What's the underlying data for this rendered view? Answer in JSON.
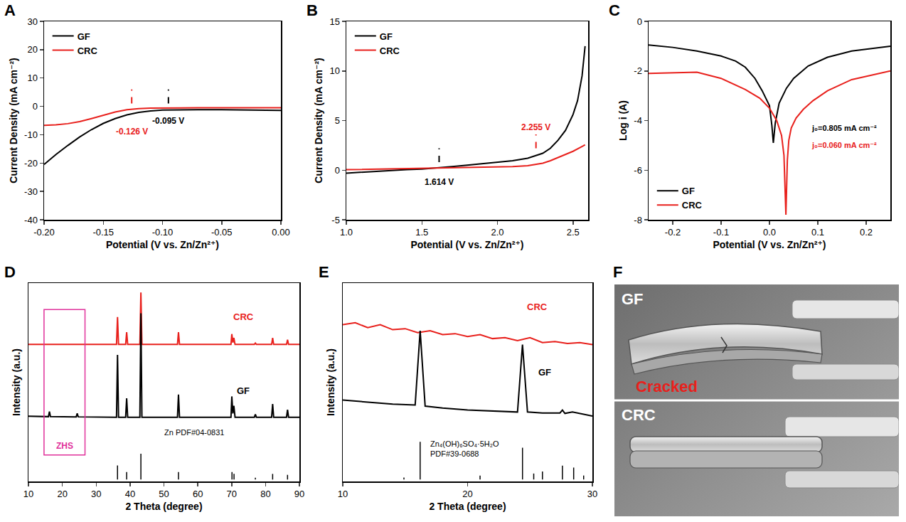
{
  "chart_data": [
    {
      "panel": "A",
      "type": "line",
      "x_label": "Potential (V vs. Zn/Zn²⁺)",
      "y_label": "Current Density (mA cm⁻²)",
      "xlim": [
        -0.2,
        0
      ],
      "xticks": [
        {
          "value": -0.2,
          "label": "-0.20"
        },
        {
          "value": -0.15,
          "label": "-0.15"
        },
        {
          "value": -0.1,
          "label": "-0.10"
        },
        {
          "value": -0.05,
          "label": "-0.05"
        },
        {
          "value": 0,
          "label": "0.00"
        }
      ],
      "ylim": [
        -40,
        30
      ],
      "yticks": [
        -40,
        -30,
        -20,
        -10,
        0,
        10,
        20,
        30
      ],
      "grid": false,
      "legend": "upper left",
      "series": [
        {
          "name": "GF",
          "color": "#000000",
          "x": [
            -0.2,
            -0.19,
            -0.18,
            -0.17,
            -0.16,
            -0.15,
            -0.14,
            -0.13,
            -0.12,
            -0.11,
            -0.1,
            -0.09,
            -0.07,
            -0.05,
            -0.03,
            0
          ],
          "values": [
            -20.5,
            -17,
            -13.8,
            -10.8,
            -8.2,
            -6,
            -4.3,
            -3,
            -2.1,
            -1.6,
            -1.3,
            -1.2,
            -1.15,
            -1.2,
            -1.3,
            -1.4
          ]
        },
        {
          "name": "CRC",
          "color": "#e8201c",
          "x": [
            -0.2,
            -0.19,
            -0.18,
            -0.17,
            -0.16,
            -0.15,
            -0.14,
            -0.13,
            -0.12,
            -0.11,
            -0.1,
            -0.09,
            -0.07,
            -0.05,
            -0.03,
            0
          ],
          "values": [
            -6.7,
            -6.5,
            -6.1,
            -5.4,
            -4.3,
            -3.1,
            -2,
            -1.2,
            -0.8,
            -0.6,
            -0.55,
            -0.5,
            -0.5,
            -0.5,
            -0.5,
            -0.5
          ]
        }
      ],
      "dashed_markers": [
        {
          "x": -0.126,
          "y": [
            1,
            6
          ],
          "label": "-0.126 V",
          "label_y": -9,
          "color": "#e8201c"
        },
        {
          "x": -0.095,
          "y": [
            1,
            6
          ],
          "label": "-0.095 V",
          "label_y": -5,
          "color": "#000000"
        }
      ]
    },
    {
      "panel": "B",
      "type": "line",
      "x_label": "Potential (V vs. Zn/Zn²⁺)",
      "y_label": "Current Density (mA cm⁻²)",
      "xlim": [
        1.0,
        2.6
      ],
      "xticks": [
        {
          "value": 1.0,
          "label": "1.0"
        },
        {
          "value": 1.5,
          "label": "1.5"
        },
        {
          "value": 2.0,
          "label": "2.0"
        },
        {
          "value": 2.5,
          "label": "2.5"
        }
      ],
      "ylim": [
        -5,
        15
      ],
      "yticks": [
        -5,
        0,
        5,
        10,
        15
      ],
      "grid": false,
      "legend": "upper left",
      "series": [
        {
          "name": "GF",
          "color": "#000000",
          "x": [
            1.0,
            1.1,
            1.2,
            1.3,
            1.4,
            1.5,
            1.6,
            1.7,
            1.8,
            1.9,
            2.0,
            2.1,
            2.2,
            2.3,
            2.35,
            2.4,
            2.45,
            2.5,
            2.53,
            2.56,
            2.58
          ],
          "values": [
            -0.3,
            -0.2,
            -0.1,
            0,
            0.05,
            0.1,
            0.2,
            0.35,
            0.5,
            0.65,
            0.8,
            0.95,
            1.2,
            1.7,
            2.2,
            3,
            4,
            5.6,
            7,
            9.5,
            12.5
          ]
        },
        {
          "name": "CRC",
          "color": "#e8201c",
          "x": [
            1.0,
            1.2,
            1.4,
            1.6,
            1.8,
            2.0,
            2.1,
            2.2,
            2.3,
            2.35,
            2.4,
            2.45,
            2.5,
            2.55,
            2.58
          ],
          "values": [
            0.05,
            0.1,
            0.15,
            0.2,
            0.25,
            0.3,
            0.35,
            0.45,
            0.7,
            0.95,
            1.25,
            1.55,
            1.9,
            2.3,
            2.55
          ]
        }
      ],
      "dashed_markers": [
        {
          "x": 1.614,
          "y": [
            0.8,
            2.2
          ],
          "label": "1.614 V",
          "label_y": -1.2,
          "color": "#000000"
        },
        {
          "x": 2.255,
          "y": [
            2.2,
            3.6
          ],
          "label": "2.255 V",
          "label_y": 4.3,
          "color": "#e8201c"
        }
      ]
    },
    {
      "panel": "C",
      "type": "line",
      "x_label": "Potential (V vs. Zn/Zn²⁺)",
      "y_label": "Log i (A)",
      "xlim": [
        -0.25,
        0.25
      ],
      "xticks": [
        {
          "value": -0.2,
          "label": "-0.2"
        },
        {
          "value": -0.1,
          "label": "-0.1"
        },
        {
          "value": 0,
          "label": "0.0"
        },
        {
          "value": 0.1,
          "label": "0.1"
        },
        {
          "value": 0.2,
          "label": "0.2"
        }
      ],
      "ylim": [
        -8,
        0
      ],
      "yticks": [
        -8,
        -6,
        -4,
        -2,
        0
      ],
      "grid": false,
      "legend": "lower left",
      "series": [
        {
          "name": "GF",
          "color": "#000000",
          "x": [
            -0.25,
            -0.2,
            -0.15,
            -0.1,
            -0.07,
            -0.05,
            -0.03,
            -0.015,
            0,
            0.005,
            0.008,
            0.012,
            0.02,
            0.035,
            0.05,
            0.08,
            0.12,
            0.17,
            0.25
          ],
          "values": [
            -0.95,
            -1.05,
            -1.2,
            -1.4,
            -1.6,
            -1.85,
            -2.3,
            -2.8,
            -3.4,
            -4.2,
            -4.9,
            -4.1,
            -3.3,
            -2.7,
            -2.3,
            -1.8,
            -1.45,
            -1.2,
            -1.0
          ]
        },
        {
          "name": "CRC",
          "color": "#e8201c",
          "x": [
            -0.25,
            -0.2,
            -0.15,
            -0.1,
            -0.05,
            -0.02,
            0,
            0.015,
            0.025,
            0.03,
            0.034,
            0.037,
            0.04,
            0.045,
            0.055,
            0.07,
            0.09,
            0.12,
            0.17,
            0.25
          ],
          "values": [
            -2.1,
            -2.08,
            -2.05,
            -2.3,
            -2.75,
            -3.1,
            -3.5,
            -4.0,
            -4.6,
            -5.4,
            -7.8,
            -5.6,
            -4.8,
            -4.3,
            -3.9,
            -3.55,
            -3.2,
            -2.8,
            -2.35,
            -2.0
          ]
        }
      ],
      "annotations": [
        {
          "text": "j₀=0.805 mA cm⁻²",
          "x": 0.155,
          "y": -4.3,
          "color": "#000000"
        },
        {
          "text": "j₀=0.060 mA cm⁻²",
          "x": 0.155,
          "y": -5.0,
          "color": "#e8201c"
        }
      ]
    },
    {
      "panel": "D",
      "type": "line",
      "x_label": "2 Theta (degree)",
      "y_label": "Intensity (a.u.)",
      "xlim": [
        10,
        90
      ],
      "xticks": [
        10,
        20,
        30,
        40,
        50,
        60,
        70,
        80,
        90
      ],
      "ylim": [
        0,
        105
      ],
      "tick_labels": "x",
      "grid": false,
      "series": [
        {
          "name": "CRC",
          "color": "#e8201c",
          "label_at": [
            73.5,
            87
          ],
          "x": [
            10,
            36.0,
            36.3,
            36.6,
            38.7,
            39.0,
            39.3,
            42.9,
            43.2,
            43.5,
            54.0,
            54.3,
            54.6,
            69.8,
            70.05,
            70.35,
            70.65,
            71.0,
            76.7,
            77.0,
            77.3,
            81.8,
            82.1,
            82.4,
            86.2,
            86.5,
            86.8,
            90
          ],
          "values": [
            72.5,
            72.5,
            87,
            72.5,
            72.5,
            79,
            72.5,
            72.5,
            100,
            72.5,
            72.5,
            79,
            72.5,
            72.5,
            78,
            73.5,
            76,
            72.5,
            72.5,
            73.2,
            72.5,
            72.5,
            76,
            72.5,
            72.5,
            75,
            72.5,
            72.5
          ]
        },
        {
          "name": "GF",
          "color": "#000000",
          "label_at": [
            73.5,
            48
          ],
          "x": [
            10,
            15.9,
            16.2,
            16.5,
            24.1,
            24.4,
            24.7,
            36.0,
            36.3,
            36.6,
            38.7,
            39.0,
            39.3,
            42.9,
            43.2,
            43.5,
            54.0,
            54.3,
            54.6,
            69.8,
            70.05,
            70.35,
            70.65,
            71.0,
            76.7,
            77.0,
            77.3,
            81.8,
            82.1,
            82.4,
            86.2,
            86.5,
            86.8,
            90
          ],
          "values": [
            34.5,
            34.3,
            37,
            34.3,
            34.2,
            36,
            34.2,
            34,
            67,
            34,
            34,
            44,
            34,
            34,
            89,
            34,
            34,
            46,
            34,
            34,
            45,
            36,
            40,
            34,
            34,
            35.5,
            34,
            34,
            41,
            34,
            34,
            38,
            34,
            34
          ]
        },
        {
          "name": "Zn PDF#04-0831",
          "type": "stick",
          "color": "#000000",
          "label_at": [
            59,
            26
          ],
          "x": [
            36.3,
            36.3,
            null,
            39.0,
            39.0,
            null,
            43.2,
            43.2,
            null,
            54.3,
            54.3,
            null,
            70.1,
            70.1,
            null,
            70.7,
            70.7,
            null,
            77.0,
            77.0,
            null,
            82.1,
            82.1,
            null,
            86.5,
            86.5
          ],
          "values": [
            1,
            8.5,
            null,
            1,
            5,
            null,
            1,
            14.7,
            null,
            1,
            5,
            null,
            1,
            5,
            null,
            1,
            4,
            null,
            1,
            2,
            null,
            1,
            4,
            null,
            1,
            3.5
          ]
        }
      ],
      "highlight": {
        "label": "ZHS",
        "color": "#e0309a",
        "x": [
          14.6,
          26.7
        ],
        "y": [
          14,
          91
        ],
        "label_at": [
          20.65,
          19
        ]
      }
    },
    {
      "panel": "E",
      "type": "line",
      "x_label": "2 Theta (degree)",
      "y_label": "Intensity (a.u.)",
      "xlim": [
        10,
        30
      ],
      "xticks": [
        10,
        20,
        30
      ],
      "ylim": [
        0,
        100
      ],
      "tick_labels": "x",
      "grid": false,
      "series": [
        {
          "name": "CRC",
          "color": "#e8201c",
          "label_at": [
            25.6,
            88
          ],
          "x": [
            10,
            11,
            12,
            13,
            14,
            15,
            16,
            17,
            18,
            19,
            20,
            21,
            22,
            23,
            24,
            25,
            26,
            27,
            28,
            29,
            30
          ],
          "values": [
            79,
            80,
            77.5,
            79,
            76.5,
            77,
            75,
            76,
            74,
            74.5,
            73,
            74,
            72,
            72.5,
            71,
            72.5,
            70,
            70.5,
            69.5,
            70,
            69
          ]
        },
        {
          "name": "GF",
          "color": "#000000",
          "label_at": [
            26.2,
            55
          ],
          "x": [
            10,
            12,
            14,
            15.8,
            16.2,
            16.6,
            18,
            20,
            22,
            24.0,
            24.4,
            24.8,
            26,
            27.4,
            27.6,
            27.8,
            28.4,
            30
          ],
          "values": [
            41,
            40,
            39,
            38.5,
            76,
            38,
            37,
            36,
            35.5,
            35,
            69,
            35,
            34.5,
            34.5,
            36,
            34.3,
            35,
            33
          ]
        },
        {
          "name": "Zn₄(OH)₆SO₄·5H₂O\nPDF#39-0688",
          "type": "stick",
          "color": "#000000",
          "label_at": [
            19.8,
            16.5
          ],
          "x": [
            14.9,
            14.9,
            null,
            16.2,
            16.2,
            null,
            21.0,
            21.0,
            null,
            24.4,
            24.4,
            null,
            25.3,
            25.3,
            null,
            26.0,
            26.0,
            null,
            27.6,
            27.6,
            null,
            28.5,
            28.5,
            null,
            29.3,
            29.3
          ],
          "values": [
            1,
            2,
            null,
            1,
            20,
            null,
            1,
            3,
            null,
            1,
            17,
            null,
            1,
            4,
            null,
            1,
            5,
            null,
            1,
            8,
            null,
            1,
            7,
            null,
            1,
            3
          ]
        }
      ]
    }
  ],
  "photo": {
    "panel": "F",
    "items": [
      {
        "label": "GF",
        "caption": "Cracked"
      },
      {
        "label": "CRC"
      }
    ]
  }
}
